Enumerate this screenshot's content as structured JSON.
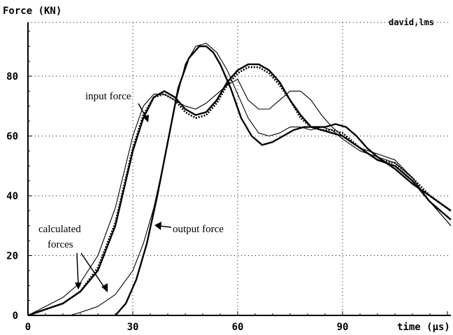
{
  "chart_data": {
    "type": "line",
    "ylabel": "Force (KN)",
    "xlabel": "time (µs)",
    "corner_label": "david,lms",
    "xlim": [
      0,
      121
    ],
    "ylim": [
      0,
      98
    ],
    "x_ticks": [
      0,
      30,
      60,
      90
    ],
    "y_ticks": [
      0,
      20,
      40,
      60,
      80
    ],
    "grid": true,
    "grid_style": "dotted",
    "annotations": {
      "input": "input force",
      "output": "output force",
      "calc_line1": "calculated",
      "calc_line2": "forces"
    },
    "series": [
      {
        "style": "solid-thick",
        "x": [
          0,
          5,
          10,
          15,
          20,
          25,
          30,
          33,
          36,
          39,
          42,
          45,
          48,
          51,
          54,
          57,
          60,
          63,
          66,
          69,
          72,
          75,
          78,
          81,
          84,
          87,
          90,
          95,
          100,
          105,
          110,
          115,
          121
        ],
        "y": [
          0,
          2,
          4,
          8,
          15,
          30,
          55,
          66,
          73,
          75,
          73,
          69,
          67,
          68,
          72,
          78,
          82,
          84,
          84,
          82,
          78,
          72,
          67,
          63,
          62,
          61,
          60,
          56,
          52,
          50,
          45,
          38,
          32
        ]
      },
      {
        "style": "dotted-thick",
        "x": [
          0,
          5,
          10,
          15,
          20,
          25,
          30,
          33,
          36,
          39,
          42,
          45,
          48,
          51,
          54,
          57,
          60,
          63,
          66,
          69,
          72,
          75,
          78,
          81,
          84,
          87,
          90,
          95,
          100,
          105,
          110,
          115,
          121
        ],
        "y": [
          0,
          2,
          4,
          8,
          16,
          31,
          56,
          67,
          73,
          74,
          72,
          68,
          66,
          67,
          71,
          77,
          81,
          83,
          83,
          81,
          77,
          72,
          66,
          63,
          62,
          62,
          61,
          56,
          52,
          51,
          46,
          40,
          35
        ]
      },
      {
        "style": "solid-thin",
        "x": [
          0,
          5,
          10,
          15,
          20,
          25,
          30,
          33,
          36,
          39,
          42,
          45,
          48,
          51,
          54,
          57,
          60,
          63,
          66,
          69,
          72,
          75,
          78,
          81,
          84,
          87,
          90,
          95,
          100,
          105,
          110,
          115,
          121
        ],
        "y": [
          0,
          3,
          6,
          11,
          20,
          36,
          60,
          70,
          74,
          74,
          72,
          70,
          69,
          71,
          74,
          77,
          79,
          72,
          69,
          69,
          72,
          75,
          75,
          72,
          67,
          63,
          60,
          56,
          54,
          52,
          46,
          38,
          30
        ]
      },
      {
        "style": "solid-thick",
        "x": [
          25,
          28,
          31,
          34,
          37,
          40,
          43,
          46,
          49,
          51,
          53,
          55,
          58,
          61,
          64,
          67,
          70,
          73,
          76,
          79,
          82,
          85,
          88,
          91,
          94,
          97,
          100,
          105,
          110,
          115,
          121
        ],
        "y": [
          0,
          4,
          12,
          24,
          40,
          58,
          76,
          86,
          90,
          90,
          88,
          84,
          76,
          66,
          60,
          57,
          58,
          60,
          62,
          63,
          63,
          63,
          64,
          63,
          60,
          56,
          53,
          49,
          44,
          40,
          35
        ]
      },
      {
        "style": "solid-thin",
        "x": [
          12,
          15,
          20,
          25,
          30,
          33,
          36,
          39,
          42,
          45,
          48,
          51,
          54,
          57,
          60,
          63,
          66,
          69,
          72,
          75,
          78,
          81,
          84,
          87,
          90,
          95,
          100,
          105,
          110,
          115,
          121
        ],
        "y": [
          0,
          1,
          3,
          7,
          15,
          24,
          36,
          52,
          70,
          84,
          90,
          91,
          88,
          82,
          74,
          66,
          61,
          60,
          61,
          63,
          63,
          62,
          63,
          62,
          59,
          55,
          53,
          51,
          46,
          38,
          30
        ]
      }
    ]
  }
}
